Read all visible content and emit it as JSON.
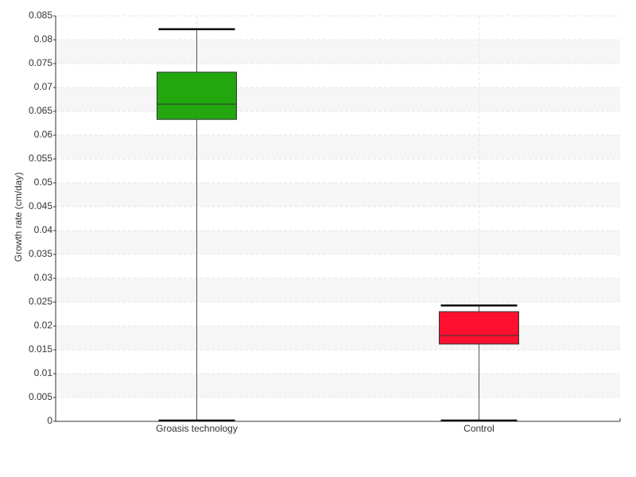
{
  "chart_data": {
    "type": "box",
    "y_label": "Growth rate (cm/day)",
    "categories": [
      "Groasis technology",
      "Control"
    ],
    "boxes": [
      {
        "min": 0,
        "q1": 0.0633,
        "median": 0.0665,
        "q3": 0.0732,
        "max": 0.0822,
        "color": "#22a70f"
      },
      {
        "min": 0,
        "q1": 0.0162,
        "median": 0.018,
        "q3": 0.023,
        "max": 0.0243,
        "color": "#ff1030"
      }
    ],
    "ylim": [
      0,
      0.085
    ],
    "yticks": [
      0,
      0.005,
      0.01,
      0.015,
      0.02,
      0.025,
      0.03,
      0.035,
      0.04,
      0.045,
      0.05,
      0.055,
      0.06,
      0.065,
      0.07,
      0.075,
      0.08,
      0.085
    ],
    "grid": true
  }
}
